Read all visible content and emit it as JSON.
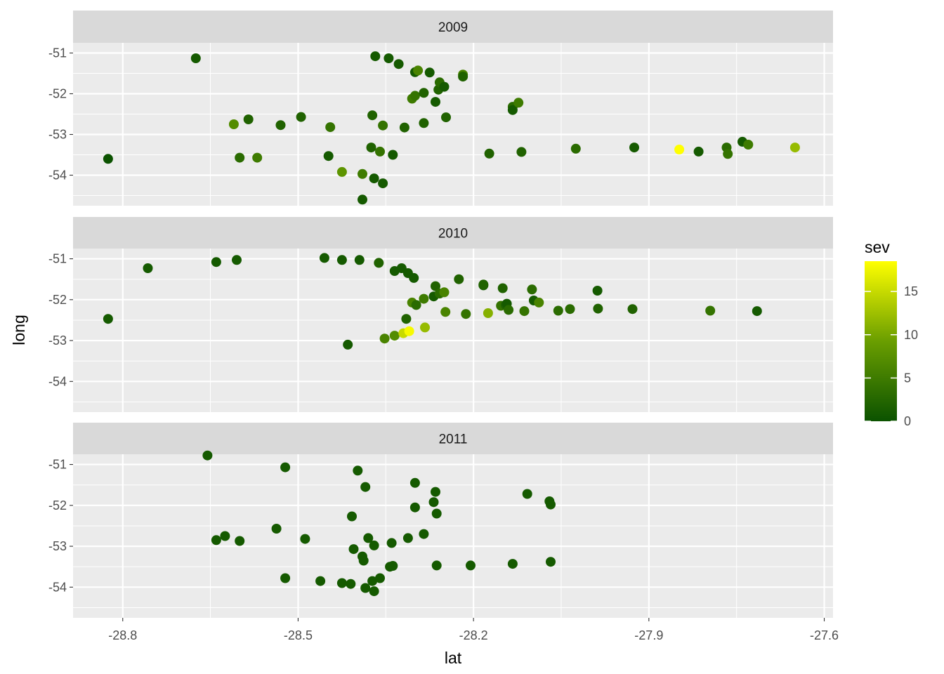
{
  "chart_data": {
    "type": "scatter",
    "xlabel": "lat",
    "ylabel": "long",
    "x_ticks": [
      -28.8,
      -28.5,
      -28.2,
      -27.9,
      -27.6
    ],
    "x_tick_labels": [
      "-28.8",
      "-28.5",
      "-28.2",
      "-27.9",
      "-27.6"
    ],
    "y_ticks": [
      -51,
      -52,
      -53,
      -54
    ],
    "y_tick_labels": [
      "-51",
      "-52",
      "-53",
      "-54"
    ],
    "xlim": [
      -28.885,
      -27.585
    ],
    "ylim": [
      -54.75,
      -50.75
    ],
    "grid": true,
    "color_scale": {
      "title": "sev",
      "low_color": "#0B5200",
      "high_color": "#FFFF00",
      "range": [
        0,
        18.5
      ],
      "breaks": [
        0,
        5,
        10,
        15
      ],
      "break_labels": [
        "0",
        "5",
        "10",
        "15"
      ]
    },
    "panels": [
      {
        "label": "2009",
        "points": [
          [
            -28.825,
            -53.6,
            0
          ],
          [
            -28.675,
            -51.13,
            1
          ],
          [
            -28.61,
            -52.75,
            7
          ],
          [
            -28.585,
            -52.63,
            2
          ],
          [
            -28.6,
            -53.57,
            3
          ],
          [
            -28.57,
            -53.57,
            5
          ],
          [
            -28.53,
            -52.77,
            2
          ],
          [
            -28.495,
            -52.57,
            2
          ],
          [
            -28.445,
            -52.82,
            4
          ],
          [
            -28.448,
            -53.53,
            1
          ],
          [
            -28.425,
            -53.92,
            8
          ],
          [
            -28.39,
            -53.97,
            5
          ],
          [
            -28.39,
            -54.6,
            1
          ],
          [
            -28.375,
            -53.32,
            2
          ],
          [
            -28.373,
            -52.53,
            2
          ],
          [
            -28.368,
            -51.08,
            1
          ],
          [
            -28.36,
            -53.42,
            4
          ],
          [
            -28.355,
            -52.78,
            4
          ],
          [
            -28.345,
            -51.13,
            1
          ],
          [
            -28.37,
            -54.08,
            1
          ],
          [
            -28.355,
            -54.2,
            1
          ],
          [
            -28.338,
            -53.5,
            1
          ],
          [
            -28.328,
            -51.27,
            1
          ],
          [
            -28.318,
            -52.83,
            2
          ],
          [
            -28.3,
            -51.47,
            1
          ],
          [
            -28.295,
            -51.43,
            6
          ],
          [
            -28.305,
            -52.12,
            5
          ],
          [
            -28.3,
            -52.05,
            4
          ],
          [
            -28.285,
            -51.98,
            2
          ],
          [
            -28.285,
            -52.72,
            2
          ],
          [
            -28.275,
            -51.48,
            1
          ],
          [
            -28.265,
            -52.2,
            1
          ],
          [
            -28.26,
            -51.9,
            2
          ],
          [
            -28.258,
            -51.72,
            3
          ],
          [
            -28.25,
            -51.83,
            1
          ],
          [
            -28.247,
            -52.58,
            2
          ],
          [
            -28.218,
            -51.53,
            6
          ],
          [
            -28.218,
            -51.58,
            2
          ],
          [
            -28.173,
            -53.47,
            2
          ],
          [
            -28.133,
            -52.32,
            3
          ],
          [
            -28.133,
            -52.4,
            1
          ],
          [
            -28.123,
            -52.22,
            5
          ],
          [
            -28.118,
            -53.43,
            2
          ],
          [
            -28.025,
            -53.35,
            3
          ],
          [
            -27.925,
            -53.32,
            1
          ],
          [
            -27.848,
            -53.37,
            18.5
          ],
          [
            -27.815,
            -53.42,
            1
          ],
          [
            -27.767,
            -53.32,
            3
          ],
          [
            -27.765,
            -53.48,
            4
          ],
          [
            -27.74,
            -53.18,
            1
          ],
          [
            -27.73,
            -53.25,
            5
          ],
          [
            -27.65,
            -53.32,
            12
          ]
        ]
      },
      {
        "label": "2010",
        "points": [
          [
            -28.825,
            -52.47,
            1
          ],
          [
            -28.757,
            -51.23,
            1
          ],
          [
            -28.64,
            -51.08,
            1
          ],
          [
            -28.605,
            -51.03,
            1
          ],
          [
            -28.455,
            -50.98,
            1
          ],
          [
            -28.425,
            -51.03,
            1
          ],
          [
            -28.395,
            -51.03,
            1
          ],
          [
            -28.362,
            -51.1,
            2
          ],
          [
            -28.335,
            -51.3,
            1
          ],
          [
            -28.323,
            -51.23,
            1
          ],
          [
            -28.312,
            -51.35,
            1
          ],
          [
            -28.302,
            -51.47,
            1
          ],
          [
            -28.305,
            -52.07,
            6
          ],
          [
            -28.298,
            -52.13,
            3
          ],
          [
            -28.285,
            -51.98,
            5
          ],
          [
            -28.265,
            -51.67,
            2
          ],
          [
            -28.268,
            -51.92,
            1
          ],
          [
            -28.258,
            -51.85,
            3
          ],
          [
            -28.25,
            -51.82,
            6
          ],
          [
            -28.248,
            -52.3,
            6
          ],
          [
            -28.225,
            -51.5,
            2
          ],
          [
            -28.213,
            -52.35,
            4
          ],
          [
            -28.183,
            -51.65,
            1
          ],
          [
            -28.183,
            -51.63,
            2
          ],
          [
            -28.175,
            -52.33,
            11
          ],
          [
            -28.153,
            -52.15,
            4
          ],
          [
            -28.15,
            -51.72,
            2
          ],
          [
            -28.145,
            -52.13,
            2
          ],
          [
            -28.143,
            -52.1,
            1
          ],
          [
            -28.14,
            -52.25,
            3
          ],
          [
            -28.113,
            -52.28,
            4
          ],
          [
            -28.1,
            -51.75,
            3
          ],
          [
            -28.097,
            -52.02,
            1
          ],
          [
            -28.088,
            -52.07,
            6
          ],
          [
            -28.055,
            -52.27,
            3
          ],
          [
            -28.035,
            -52.23,
            3
          ],
          [
            -27.988,
            -51.78,
            1
          ],
          [
            -27.987,
            -52.22,
            2
          ],
          [
            -27.928,
            -52.23,
            2
          ],
          [
            -27.795,
            -52.27,
            4
          ],
          [
            -27.715,
            -52.28,
            1
          ],
          [
            -28.415,
            -53.1,
            1
          ],
          [
            -28.352,
            -52.95,
            6
          ],
          [
            -28.335,
            -52.88,
            7
          ],
          [
            -28.32,
            -52.82,
            15
          ],
          [
            -28.315,
            -52.47,
            2
          ],
          [
            -28.283,
            -52.68,
            12
          ],
          [
            -28.31,
            -52.77,
            18
          ]
        ]
      },
      {
        "label": "2011",
        "points": [
          [
            -28.655,
            -50.78,
            1
          ],
          [
            -28.64,
            -52.85,
            1
          ],
          [
            -28.625,
            -52.75,
            1
          ],
          [
            -28.6,
            -52.87,
            1
          ],
          [
            -28.537,
            -52.57,
            1
          ],
          [
            -28.522,
            -51.07,
            1
          ],
          [
            -28.522,
            -53.78,
            1
          ],
          [
            -28.488,
            -52.82,
            1
          ],
          [
            -28.462,
            -53.85,
            1
          ],
          [
            -28.425,
            -53.9,
            1
          ],
          [
            -28.408,
            -52.27,
            1
          ],
          [
            -28.405,
            -53.07,
            1
          ],
          [
            -28.398,
            -51.15,
            1
          ],
          [
            -28.39,
            -53.25,
            1
          ],
          [
            -28.385,
            -51.55,
            1
          ],
          [
            -28.388,
            -53.35,
            1
          ],
          [
            -28.385,
            -54.02,
            1
          ],
          [
            -28.38,
            -52.8,
            1
          ],
          [
            -28.373,
            -53.85,
            1
          ],
          [
            -28.37,
            -52.98,
            1
          ],
          [
            -28.37,
            -54.1,
            1
          ],
          [
            -28.36,
            -53.78,
            1
          ],
          [
            -28.34,
            -52.92,
            1
          ],
          [
            -28.343,
            -53.5,
            1
          ],
          [
            -28.338,
            -53.48,
            1
          ],
          [
            -28.312,
            -52.8,
            1
          ],
          [
            -28.3,
            -51.45,
            1
          ],
          [
            -28.3,
            -52.05,
            1
          ],
          [
            -28.285,
            -52.7,
            1
          ],
          [
            -28.268,
            -51.92,
            1
          ],
          [
            -28.265,
            -51.67,
            1
          ],
          [
            -28.263,
            -52.2,
            1
          ],
          [
            -28.263,
            -53.47,
            1
          ],
          [
            -28.205,
            -53.47,
            1
          ],
          [
            -28.133,
            -53.43,
            1
          ],
          [
            -28.108,
            -51.72,
            1
          ],
          [
            -28.07,
            -51.9,
            1
          ],
          [
            -28.068,
            -51.98,
            1
          ],
          [
            -28.068,
            -53.38,
            1
          ],
          [
            -28.41,
            -53.92,
            1
          ]
        ]
      }
    ]
  }
}
